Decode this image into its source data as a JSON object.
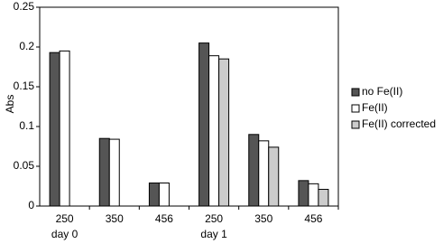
{
  "chart_data": {
    "type": "bar",
    "y_label": "Abs",
    "categories": [
      "250",
      "350",
      "456",
      "250",
      "350",
      "456"
    ],
    "sublabels": [
      "day 0",
      null,
      null,
      "day 1",
      null,
      null
    ],
    "series": [
      {
        "name": "no Fe(II)",
        "color": "#555555",
        "values": [
          0.193,
          0.085,
          0.029,
          0.205,
          0.09,
          0.032
        ]
      },
      {
        "name": "Fe(II)",
        "color": "#ffffff",
        "values": [
          0.195,
          0.084,
          0.029,
          0.189,
          0.082,
          0.028
        ]
      },
      {
        "name": "Fe(II) corrected",
        "color": "#cccccc",
        "values": [
          null,
          null,
          null,
          0.185,
          0.074,
          0.021
        ]
      }
    ],
    "ylim": [
      0,
      0.25
    ],
    "yticks": [
      0,
      0.05,
      0.1,
      0.15,
      0.2,
      0.25
    ],
    "legend": "right"
  }
}
